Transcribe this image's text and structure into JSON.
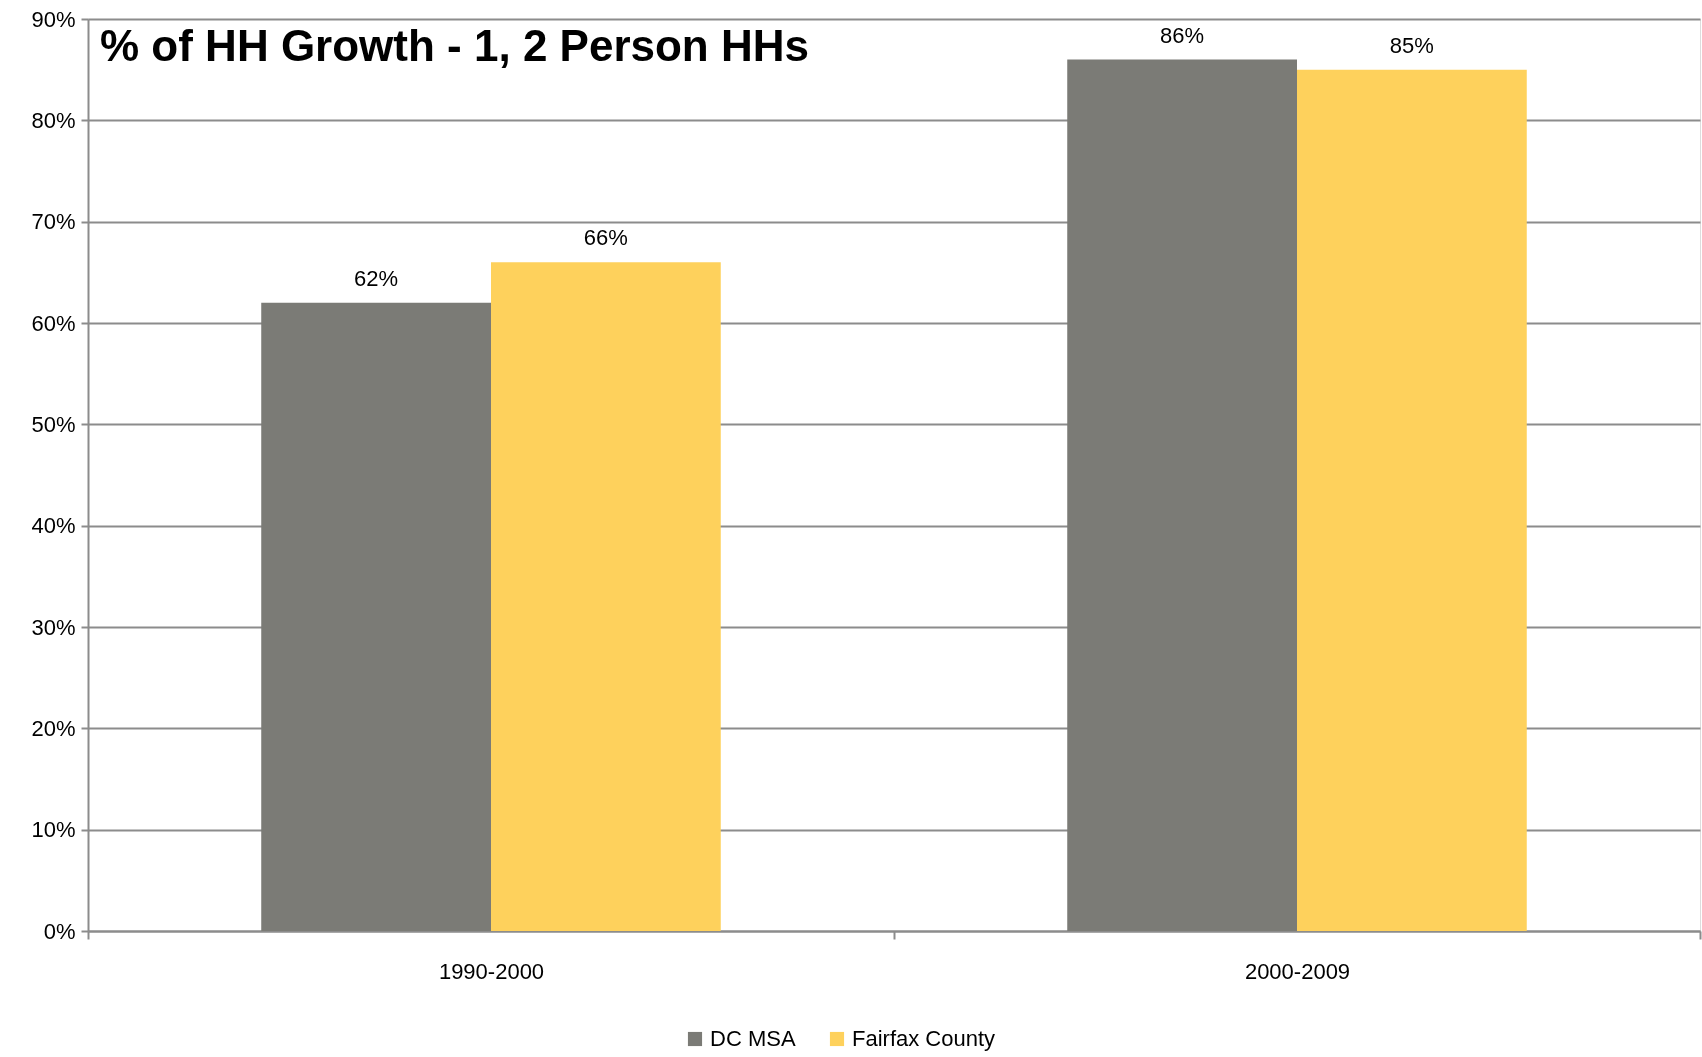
{
  "chart_data": {
    "type": "bar",
    "title": "% of HH Growth - 1, 2 Person HHs",
    "categories": [
      "1990-2000",
      "2000-2009"
    ],
    "series": [
      {
        "name": "DC MSA",
        "color": "#7b7b76",
        "values": [
          62,
          86
        ],
        "value_labels": [
          "62%",
          "86%"
        ]
      },
      {
        "name": "Fairfax County",
        "color": "#fed15c",
        "values": [
          66,
          85
        ],
        "value_labels": [
          "66%",
          "85%"
        ]
      }
    ],
    "ylim": [
      0,
      90
    ],
    "yticks": [
      {
        "value": 0,
        "label": "0%"
      },
      {
        "value": 10,
        "label": "10%"
      },
      {
        "value": 20,
        "label": "20%"
      },
      {
        "value": 30,
        "label": "30%"
      },
      {
        "value": 40,
        "label": "40%"
      },
      {
        "value": 50,
        "label": "50%"
      },
      {
        "value": 60,
        "label": "60%"
      },
      {
        "value": 70,
        "label": "70%"
      },
      {
        "value": 80,
        "label": "80%"
      },
      {
        "value": 90,
        "label": "90%"
      }
    ],
    "grid": "y",
    "legend": "bottom"
  }
}
